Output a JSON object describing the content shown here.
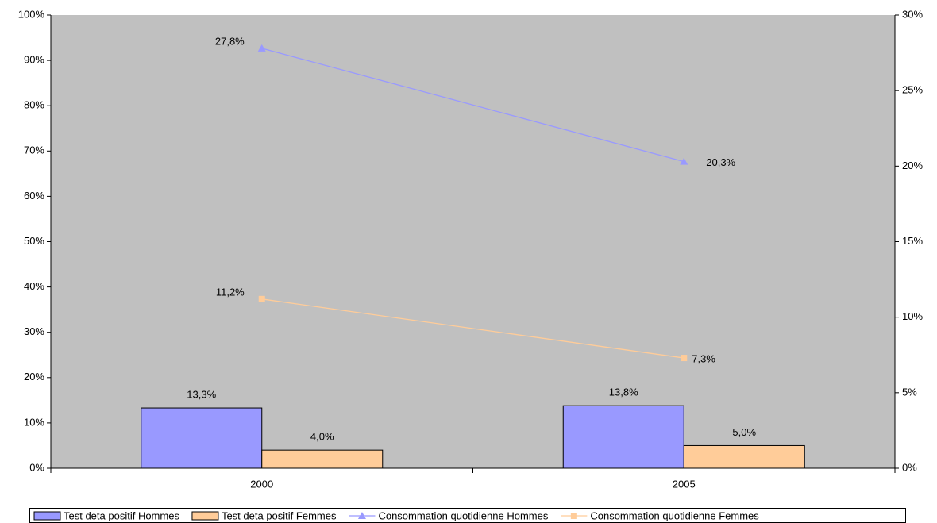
{
  "chart_data": {
    "type": "combo",
    "categories": [
      "2000",
      "2005"
    ],
    "ylim": [
      0,
      100
    ],
    "yticks": [
      {
        "value": 0,
        "label": "0%"
      },
      {
        "value": 10,
        "label": "10%"
      },
      {
        "value": 20,
        "label": "20%"
      },
      {
        "value": 30,
        "label": "30%"
      },
      {
        "value": 40,
        "label": "40%"
      },
      {
        "value": 50,
        "label": "50%"
      },
      {
        "value": 60,
        "label": "60%"
      },
      {
        "value": 70,
        "label": "70%"
      },
      {
        "value": 80,
        "label": "80%"
      },
      {
        "value": 90,
        "label": "90%"
      },
      {
        "value": 100,
        "label": "100%"
      }
    ],
    "y2lim": [
      0,
      30
    ],
    "y2ticks": [
      {
        "value": 0,
        "label": "0%"
      },
      {
        "value": 5,
        "label": "5%"
      },
      {
        "value": 10,
        "label": "10%"
      },
      {
        "value": 15,
        "label": "15%"
      },
      {
        "value": 20,
        "label": "20%"
      },
      {
        "value": 25,
        "label": "25%"
      },
      {
        "value": 30,
        "label": "30%"
      }
    ],
    "series": [
      {
        "name": "Test deta positif Hommes",
        "type": "bar",
        "color": "#9999ff",
        "values": [
          13.3,
          13.8
        ],
        "value_labels": [
          "13,3%",
          "13,8%"
        ]
      },
      {
        "name": "Test deta positif Femmes",
        "type": "bar",
        "color": "#ffcc99",
        "values": [
          4.0,
          5.0
        ],
        "value_labels": [
          "4,0%",
          "5,0%"
        ]
      },
      {
        "name": "Consommation quotidienne Hommes",
        "type": "line",
        "axis": "y2",
        "marker": "triangle",
        "color": "#9999ff",
        "values": [
          27.8,
          20.3
        ],
        "value_labels": [
          "27,8%",
          "20,3%"
        ]
      },
      {
        "name": "Consommation quotidienne Femmes",
        "type": "line",
        "axis": "y2",
        "marker": "square",
        "color": "#ffcc99",
        "values": [
          11.2,
          7.3
        ],
        "value_labels": [
          "11,2%",
          "7,3%"
        ]
      }
    ],
    "legend": "bottom"
  }
}
